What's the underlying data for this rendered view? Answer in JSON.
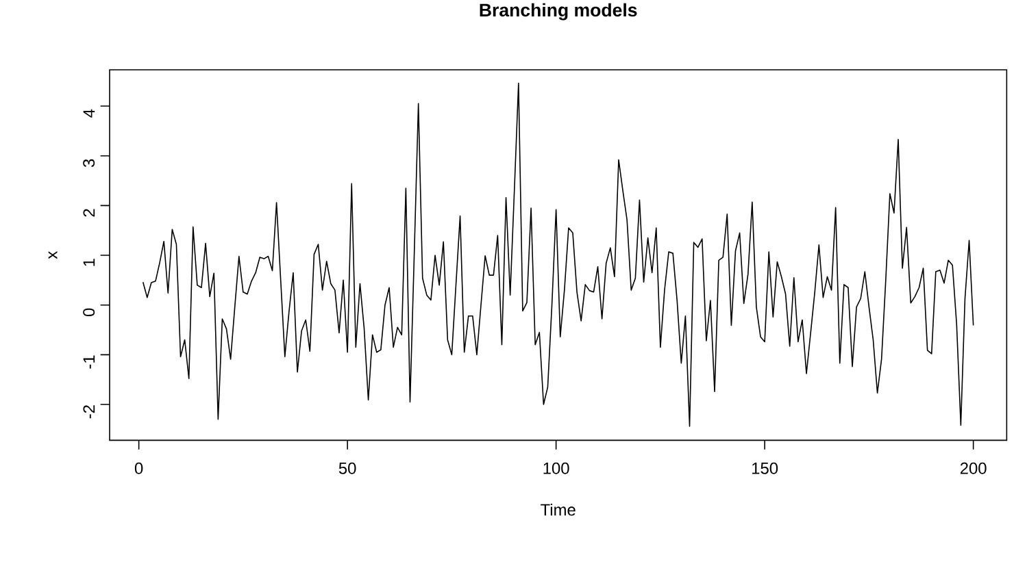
{
  "chart_data": {
    "type": "line",
    "title": "Branching models",
    "xlabel": "Time",
    "ylabel": "x",
    "x": [
      1,
      2,
      3,
      4,
      5,
      6,
      7,
      8,
      9,
      10,
      11,
      12,
      13,
      14,
      15,
      16,
      17,
      18,
      19,
      20,
      21,
      22,
      23,
      24,
      25,
      26,
      27,
      28,
      29,
      30,
      31,
      32,
      33,
      34,
      35,
      36,
      37,
      38,
      39,
      40,
      41,
      42,
      43,
      44,
      45,
      46,
      47,
      48,
      49,
      50,
      51,
      52,
      53,
      54,
      55,
      56,
      57,
      58,
      59,
      60,
      61,
      62,
      63,
      64,
      65,
      66,
      67,
      68,
      69,
      70,
      71,
      72,
      73,
      74,
      75,
      76,
      77,
      78,
      79,
      80,
      81,
      82,
      83,
      84,
      85,
      86,
      87,
      88,
      89,
      90,
      91,
      92,
      93,
      94,
      95,
      96,
      97,
      98,
      99,
      100,
      101,
      102,
      103,
      104,
      105,
      106,
      107,
      108,
      109,
      110,
      111,
      112,
      113,
      114,
      115,
      116,
      117,
      118,
      119,
      120,
      121,
      122,
      123,
      124,
      125,
      126,
      127,
      128,
      129,
      130,
      131,
      132,
      133,
      134,
      135,
      136,
      137,
      138,
      139,
      140,
      141,
      142,
      143,
      144,
      145,
      146,
      147,
      148,
      149,
      150,
      151,
      152,
      153,
      154,
      155,
      156,
      157,
      158,
      159,
      160,
      161,
      162,
      163,
      164,
      165,
      166,
      167,
      168,
      169,
      170,
      171,
      172,
      173,
      174,
      175,
      176,
      177,
      178,
      179,
      180,
      181,
      182,
      183,
      184,
      185,
      186,
      187,
      188,
      189,
      190,
      191,
      192,
      193,
      194,
      195,
      196,
      197,
      198,
      199,
      200
    ],
    "values": [
      0.46,
      0.15,
      0.45,
      0.48,
      0.85,
      1.28,
      0.24,
      1.52,
      1.22,
      -1.04,
      -0.7,
      -1.48,
      1.57,
      0.4,
      0.35,
      1.24,
      0.17,
      0.64,
      -2.3,
      -0.28,
      -0.48,
      -1.09,
      -0.04,
      0.98,
      0.26,
      0.22,
      0.48,
      0.65,
      0.96,
      0.93,
      0.98,
      0.69,
      2.06,
      0.5,
      -1.04,
      -0.13,
      0.65,
      -1.35,
      -0.52,
      -0.3,
      -0.93,
      1.02,
      1.22,
      0.3,
      0.88,
      0.43,
      0.3,
      -0.56,
      0.5,
      -0.95,
      2.44,
      -0.85,
      0.43,
      -0.47,
      -1.91,
      -0.6,
      -0.95,
      -0.9,
      0.0,
      0.35,
      -0.85,
      -0.45,
      -0.6,
      2.35,
      -1.95,
      1.0,
      4.05,
      0.54,
      0.2,
      0.1,
      1.0,
      0.4,
      1.27,
      -0.7,
      -1.0,
      0.4,
      1.79,
      -0.95,
      -0.22,
      -0.22,
      -1.0,
      0.0,
      0.99,
      0.6,
      0.6,
      1.4,
      -0.8,
      2.16,
      0.2,
      2.3,
      4.46,
      -0.12,
      0.05,
      1.95,
      -0.8,
      -0.55,
      -2.0,
      -1.65,
      0.0,
      1.92,
      -0.64,
      0.3,
      1.55,
      1.45,
      0.26,
      -0.32,
      0.41,
      0.29,
      0.26,
      0.77,
      -0.28,
      0.84,
      1.15,
      0.57,
      2.92,
      2.3,
      1.71,
      0.3,
      0.54,
      2.11,
      0.46,
      1.35,
      0.65,
      1.55,
      -0.85,
      0.3,
      1.07,
      1.04,
      0.09,
      -1.17,
      -0.22,
      -2.44,
      1.26,
      1.16,
      1.33,
      -0.72,
      0.09,
      -1.74,
      0.9,
      0.96,
      1.83,
      -0.41,
      1.09,
      1.45,
      0.03,
      0.62,
      2.07,
      -0.04,
      -0.64,
      -0.74,
      1.07,
      -0.24,
      0.87,
      0.57,
      0.22,
      -0.83,
      0.55,
      -0.74,
      -0.3,
      -1.38,
      -0.57,
      0.26,
      1.21,
      0.15,
      0.57,
      0.3,
      1.96,
      -1.17,
      0.41,
      0.35,
      -1.24,
      -0.04,
      0.13,
      0.67,
      -0.04,
      -0.7,
      -1.77,
      -1.09,
      0.48,
      2.24,
      1.85,
      3.33,
      0.74,
      1.56,
      0.04,
      0.17,
      0.35,
      0.74,
      -0.91,
      -0.98,
      0.67,
      0.7,
      0.44,
      0.9,
      0.8,
      -0.39,
      -2.42,
      0.13,
      1.3,
      -0.41
    ],
    "color": "#000000",
    "xlim": [
      -7,
      208
    ],
    "ylim": [
      -2.72,
      4.73
    ],
    "xticks": [
      0,
      50,
      100,
      150,
      200
    ],
    "yticks": [
      -2,
      -1,
      0,
      1,
      2,
      3,
      4
    ],
    "marker": "none",
    "line_style": "solid"
  }
}
